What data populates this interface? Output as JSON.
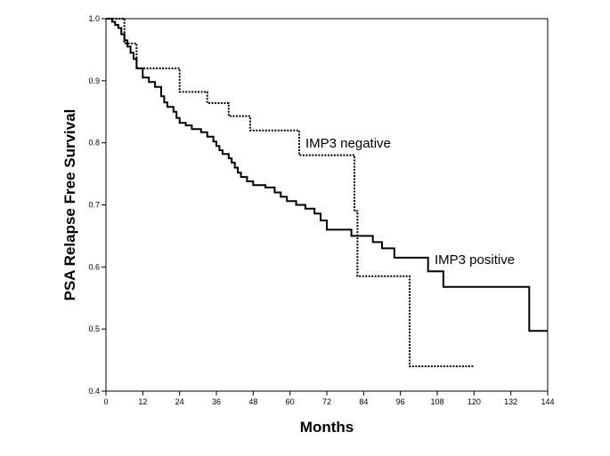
{
  "chart_data": {
    "type": "line",
    "xlabel": "Months",
    "ylabel": "PSA Relapse Free Survival",
    "xlim": [
      0,
      144
    ],
    "ylim": [
      0.4,
      1.0
    ],
    "x_ticks": [
      "0",
      "12",
      "24",
      "36",
      "48",
      "60",
      "72",
      "84",
      "96",
      "108",
      "120",
      "132",
      "144"
    ],
    "y_ticks": [
      "0.4",
      "0.5",
      "0.6",
      "0.7",
      "0.8",
      "0.9",
      "1.0"
    ],
    "grid": false,
    "legend": "none",
    "series": [
      {
        "name": "IMP3 negative",
        "style": "dotted",
        "color": "#000000",
        "points": [
          [
            0,
            1.0
          ],
          [
            6,
            1.0
          ],
          [
            6,
            0.96
          ],
          [
            10,
            0.96
          ],
          [
            10,
            0.92
          ],
          [
            24,
            0.92
          ],
          [
            24,
            0.882
          ],
          [
            33,
            0.882
          ],
          [
            33,
            0.864
          ],
          [
            40,
            0.864
          ],
          [
            40,
            0.843
          ],
          [
            47,
            0.843
          ],
          [
            47,
            0.82
          ],
          [
            63,
            0.82
          ],
          [
            63,
            0.78
          ],
          [
            81,
            0.78
          ],
          [
            81,
            0.69
          ],
          [
            82,
            0.69
          ],
          [
            82,
            0.585
          ],
          [
            99,
            0.585
          ],
          [
            99,
            0.44
          ],
          [
            120,
            0.44
          ]
        ]
      },
      {
        "name": "IMP3 positive",
        "style": "solid",
        "color": "#000000",
        "points": [
          [
            0,
            1.0
          ],
          [
            2,
            1.0
          ],
          [
            2,
            0.995
          ],
          [
            3,
            0.995
          ],
          [
            3,
            0.99
          ],
          [
            4,
            0.99
          ],
          [
            4,
            0.985
          ],
          [
            5,
            0.985
          ],
          [
            5,
            0.975
          ],
          [
            6,
            0.975
          ],
          [
            6,
            0.965
          ],
          [
            7,
            0.965
          ],
          [
            7,
            0.955
          ],
          [
            8,
            0.955
          ],
          [
            8,
            0.945
          ],
          [
            9,
            0.945
          ],
          [
            9,
            0.935
          ],
          [
            10,
            0.935
          ],
          [
            10,
            0.92
          ],
          [
            12,
            0.92
          ],
          [
            12,
            0.905
          ],
          [
            14,
            0.905
          ],
          [
            14,
            0.898
          ],
          [
            16,
            0.898
          ],
          [
            16,
            0.89
          ],
          [
            18,
            0.89
          ],
          [
            18,
            0.875
          ],
          [
            19,
            0.875
          ],
          [
            19,
            0.865
          ],
          [
            20,
            0.865
          ],
          [
            20,
            0.858
          ],
          [
            22,
            0.858
          ],
          [
            22,
            0.85
          ],
          [
            23,
            0.85
          ],
          [
            23,
            0.84
          ],
          [
            24,
            0.84
          ],
          [
            24,
            0.832
          ],
          [
            26,
            0.832
          ],
          [
            26,
            0.828
          ],
          [
            28,
            0.828
          ],
          [
            28,
            0.822
          ],
          [
            31,
            0.822
          ],
          [
            31,
            0.817
          ],
          [
            33,
            0.817
          ],
          [
            33,
            0.81
          ],
          [
            35,
            0.81
          ],
          [
            35,
            0.802
          ],
          [
            36,
            0.802
          ],
          [
            36,
            0.795
          ],
          [
            37,
            0.795
          ],
          [
            37,
            0.788
          ],
          [
            38,
            0.788
          ],
          [
            38,
            0.782
          ],
          [
            40,
            0.782
          ],
          [
            40,
            0.775
          ],
          [
            41,
            0.775
          ],
          [
            41,
            0.768
          ],
          [
            42,
            0.768
          ],
          [
            42,
            0.76
          ],
          [
            43,
            0.76
          ],
          [
            43,
            0.752
          ],
          [
            44,
            0.752
          ],
          [
            44,
            0.745
          ],
          [
            46,
            0.745
          ],
          [
            46,
            0.738
          ],
          [
            48,
            0.738
          ],
          [
            48,
            0.732
          ],
          [
            52,
            0.732
          ],
          [
            52,
            0.728
          ],
          [
            55,
            0.728
          ],
          [
            55,
            0.72
          ],
          [
            57,
            0.72
          ],
          [
            57,
            0.713
          ],
          [
            59,
            0.713
          ],
          [
            59,
            0.706
          ],
          [
            62,
            0.706
          ],
          [
            62,
            0.7
          ],
          [
            65,
            0.7
          ],
          [
            65,
            0.694
          ],
          [
            68,
            0.694
          ],
          [
            68,
            0.686
          ],
          [
            70,
            0.686
          ],
          [
            70,
            0.675
          ],
          [
            72,
            0.675
          ],
          [
            72,
            0.66
          ],
          [
            80,
            0.66
          ],
          [
            80,
            0.65
          ],
          [
            87,
            0.65
          ],
          [
            87,
            0.64
          ],
          [
            90,
            0.64
          ],
          [
            90,
            0.63
          ],
          [
            94,
            0.63
          ],
          [
            94,
            0.615
          ],
          [
            105,
            0.615
          ],
          [
            105,
            0.593
          ],
          [
            110,
            0.593
          ],
          [
            110,
            0.568
          ],
          [
            138,
            0.568
          ],
          [
            138,
            0.497
          ],
          [
            144,
            0.497
          ]
        ]
      }
    ]
  }
}
